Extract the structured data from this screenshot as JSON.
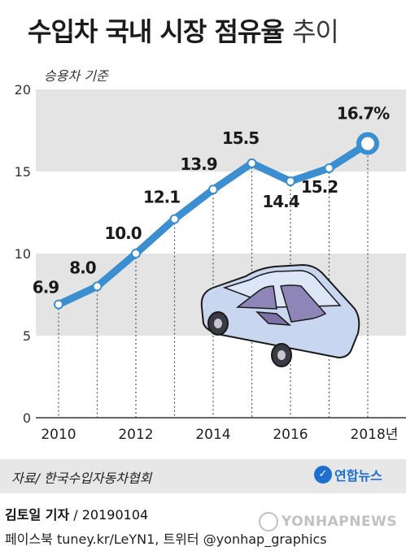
{
  "title": {
    "bold": "수입차 국내 시장 점유율",
    "light": "추이"
  },
  "subtitle": "승용차 기준",
  "chart_data": {
    "type": "line",
    "x": [
      2010,
      2011,
      2012,
      2013,
      2014,
      2015,
      2016,
      2017,
      2018
    ],
    "values": [
      6.9,
      8.0,
      10.0,
      12.1,
      13.9,
      15.5,
      14.4,
      15.2,
      16.7
    ],
    "data_labels": [
      "6.9",
      "8.0",
      "10.0",
      "12.1",
      "13.9",
      "15.5",
      "14.4",
      "15.2",
      "16.7%"
    ],
    "x_ticks": [
      "2010",
      "2012",
      "2014",
      "2016",
      "2018년"
    ],
    "y_ticks": [
      "0",
      "5",
      "10",
      "15",
      "20"
    ],
    "ylim": [
      0,
      20
    ],
    "grid": "alternating horizontal bands",
    "colors": {
      "line": "#3b8ed0",
      "band": "#e4e4e4",
      "highlight_fill": "#ffffff"
    }
  },
  "source": "자료/ 한국수입자동차협회",
  "logo": {
    "text": "연합뉴스",
    "color": "#1f6fd1"
  },
  "byline": {
    "author": "김토일 기자",
    "date": "/ 20190104"
  },
  "social": "페이스북 tuney.kr/LeYN1, 트위터 @yonhap_graphics",
  "watermark": "YONHAPNEWS"
}
